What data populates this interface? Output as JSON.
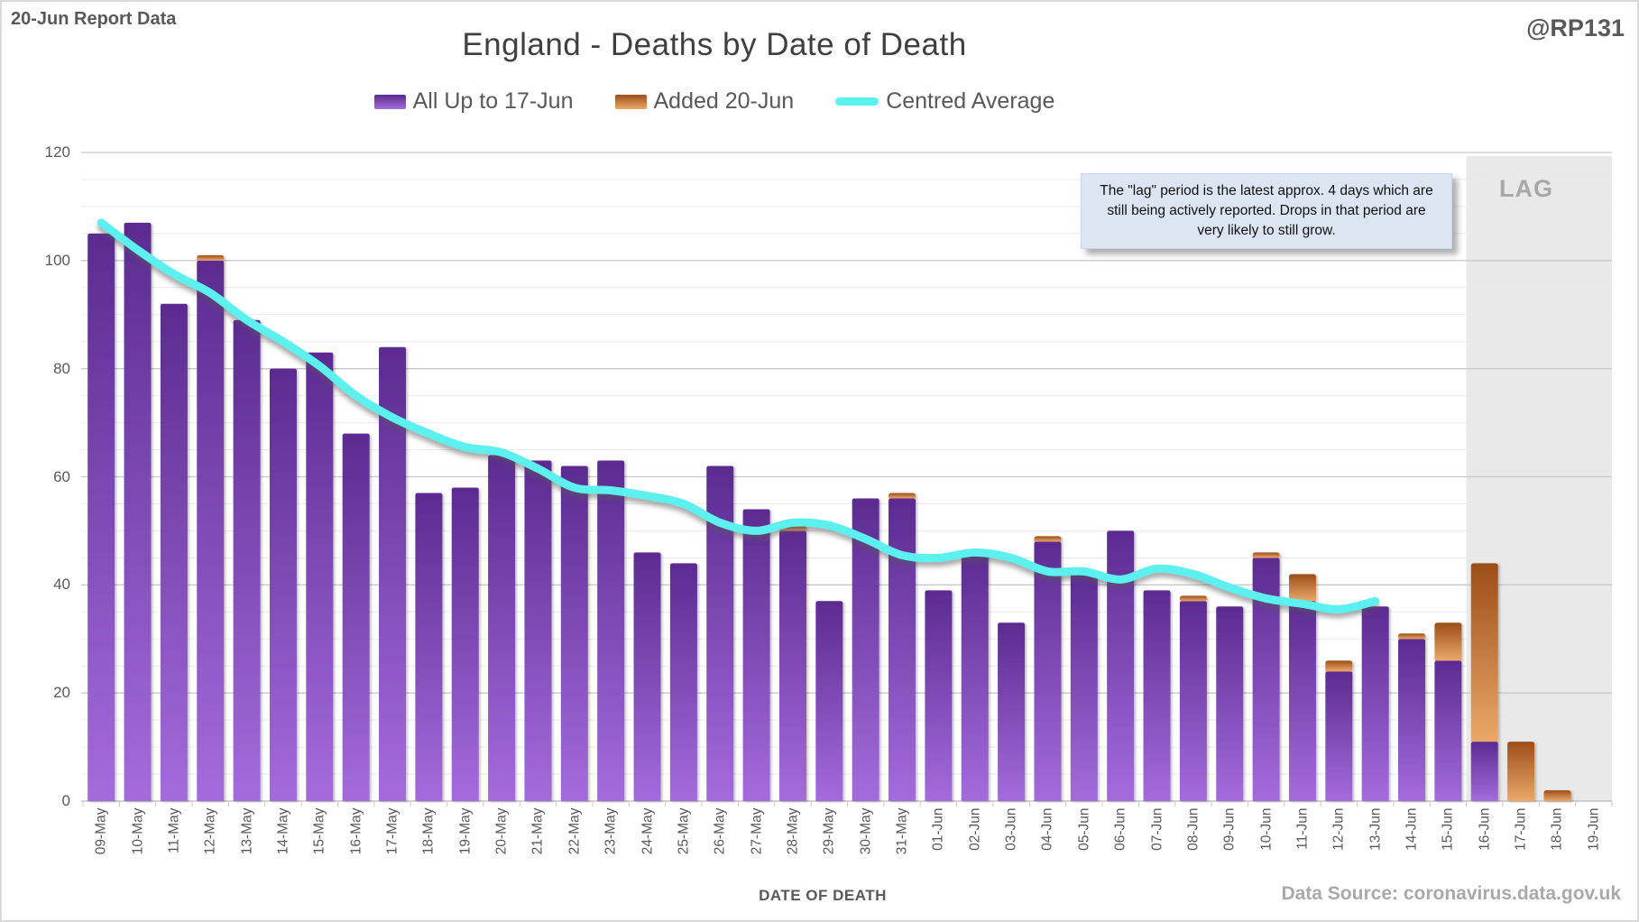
{
  "header": {
    "report_label": "20-Jun Report Data",
    "title": "England - Deaths by Date of Death",
    "handle": "@RP131"
  },
  "legend": {
    "series1_label": "All Up to 17-Jun",
    "series2_label": "Added 20-Jun",
    "series3_label": "Centred Average"
  },
  "annotation_text": "The \"lag\" period is the latest approx. 4 days which are still being actively reported. Drops in that period are very likely to still grow.",
  "lag_label": "LAG",
  "x_axis_title": "DATE OF DEATH",
  "data_source": "Data Source: coronavirus.data.gov.uk",
  "colors": {
    "purple_top": "#5b2b90",
    "purple_bottom": "#a46bdc",
    "orange_top": "#9c4e18",
    "orange_bottom": "#eba869",
    "line_cyan": "#5bf1ef",
    "lag_background": "#e9e9e9",
    "grid_major": "#c9c9c9",
    "grid_minor": "#ebebeb",
    "axis_line": "#b6b6b6"
  },
  "chart_data": {
    "type": "bar",
    "title": "England - Deaths by Date of Death",
    "xlabel": "DATE OF DEATH",
    "ylabel": "",
    "ylim": [
      0,
      120
    ],
    "y_ticks": [
      0,
      20,
      40,
      60,
      80,
      100,
      120
    ],
    "y_minor_step": 5,
    "grid": "on",
    "legend_position": "top",
    "categories": [
      "09-May",
      "10-May",
      "11-May",
      "12-May",
      "13-May",
      "14-May",
      "15-May",
      "16-May",
      "17-May",
      "18-May",
      "19-May",
      "20-May",
      "21-May",
      "22-May",
      "23-May",
      "24-May",
      "25-May",
      "26-May",
      "27-May",
      "28-May",
      "29-May",
      "30-May",
      "31-May",
      "01-Jun",
      "02-Jun",
      "03-Jun",
      "04-Jun",
      "05-Jun",
      "06-Jun",
      "07-Jun",
      "08-Jun",
      "09-Jun",
      "10-Jun",
      "11-Jun",
      "12-Jun",
      "13-Jun",
      "14-Jun",
      "15-Jun",
      "16-Jun",
      "17-Jun",
      "18-Jun",
      "19-Jun"
    ],
    "series": [
      {
        "name": "All Up to 17-Jun",
        "type": "bar",
        "values": [
          105,
          107,
          92,
          100,
          89,
          80,
          83,
          68,
          84,
          57,
          58,
          64,
          63,
          62,
          63,
          46,
          44,
          62,
          54,
          50,
          37,
          56,
          56,
          39,
          46,
          33,
          48,
          42,
          50,
          39,
          37,
          36,
          45,
          37,
          24,
          36,
          30,
          26,
          11,
          0,
          0,
          0
        ]
      },
      {
        "name": "Added 20-Jun",
        "type": "bar-stacked-on-top",
        "values": [
          0,
          0,
          0,
          1,
          0,
          0,
          0,
          0,
          0,
          0,
          0,
          0,
          0,
          0,
          0,
          0,
          0,
          0,
          0,
          1,
          0,
          0,
          1,
          0,
          0,
          0,
          1,
          0,
          0,
          0,
          1,
          0,
          1,
          5,
          2,
          0,
          1,
          7,
          33,
          11,
          2,
          0
        ]
      },
      {
        "name": "Centred Average",
        "type": "line",
        "x_categories": [
          "09-May",
          "10-May",
          "11-May",
          "12-May",
          "13-May",
          "14-May",
          "15-May",
          "16-May",
          "17-May",
          "18-May",
          "19-May",
          "20-May",
          "21-May",
          "22-May",
          "23-May",
          "24-May",
          "25-May",
          "26-May",
          "27-May",
          "28-May",
          "29-May",
          "30-May",
          "31-May",
          "01-Jun",
          "02-Jun",
          "03-Jun",
          "04-Jun",
          "05-Jun",
          "06-Jun",
          "07-Jun",
          "08-Jun",
          "09-Jun",
          "10-Jun",
          "11-Jun",
          "12-Jun",
          "13-Jun"
        ],
        "values": [
          107,
          102,
          97.5,
          94,
          89,
          85,
          80.5,
          75,
          71,
          68,
          65.5,
          64.5,
          61.5,
          58,
          57.5,
          56.5,
          55,
          51.5,
          50,
          51.5,
          51,
          48.5,
          45.5,
          45,
          46,
          45,
          42.5,
          42.5,
          41,
          43,
          42,
          39.5,
          37.5,
          36.5,
          35.5,
          37
        ]
      }
    ],
    "lag_region": {
      "start_category": "16-Jun",
      "label": "LAG"
    }
  }
}
